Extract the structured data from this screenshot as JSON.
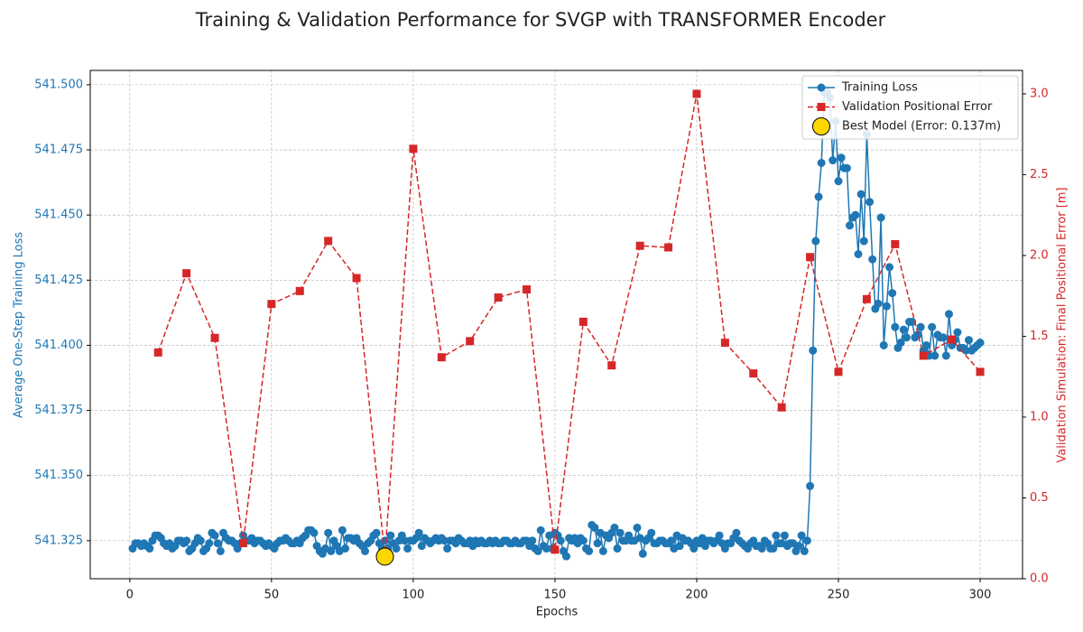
{
  "chart_data": {
    "type": "line",
    "title": "Training & Validation Performance for SVGP with TRANSFORMER Encoder",
    "x_label": "Epochs",
    "y_label": "Average One-Step Training Loss",
    "y2_label": "Validation Simulation: Final Positional Error [m]",
    "y_color": "#1f77b4",
    "y2_color": "#d62728",
    "grid": true,
    "legend": "upper right",
    "xlim": [
      -13.95,
      314.95
    ],
    "xticks": [
      0,
      50,
      100,
      150,
      200,
      250,
      300
    ],
    "ylim": [
      541.3104,
      541.5055
    ],
    "yticks": [
      541.325,
      {
        "value": 541.35,
        "label": "541.350"
      },
      541.375,
      {
        "value": 541.4,
        "label": "541.400"
      },
      541.425,
      {
        "value": 541.45,
        "label": "541.450"
      },
      541.475,
      {
        "value": 541.5,
        "label": "541.500"
      }
    ],
    "y2lim": [
      0,
      3.145
    ],
    "y2ticks": [
      {
        "value": 0,
        "label": "0.0"
      },
      0.5,
      {
        "value": 1,
        "label": "1.0"
      },
      1.5,
      {
        "value": 2,
        "label": "2.0"
      },
      2.5,
      {
        "value": 3,
        "label": "3.0"
      }
    ],
    "series": [
      {
        "name": "Training Loss",
        "color": "#1f77b4",
        "marker": "o",
        "linestyle": "solid",
        "x": [
          1,
          2,
          3,
          4,
          5,
          6,
          7,
          8,
          9,
          10,
          11,
          12,
          13,
          14,
          15,
          16,
          17,
          18,
          19,
          20,
          21,
          22,
          23,
          24,
          25,
          26,
          27,
          28,
          29,
          30,
          31,
          32,
          33,
          34,
          35,
          36,
          37,
          38,
          39,
          40,
          41,
          42,
          43,
          44,
          45,
          46,
          47,
          48,
          49,
          50,
          51,
          52,
          53,
          54,
          55,
          56,
          57,
          58,
          59,
          60,
          61,
          62,
          63,
          64,
          65,
          66,
          67,
          68,
          69,
          70,
          71,
          72,
          73,
          74,
          75,
          76,
          77,
          78,
          79,
          80,
          81,
          82,
          83,
          84,
          85,
          86,
          87,
          88,
          89,
          90,
          91,
          92,
          93,
          94,
          95,
          96,
          97,
          98,
          99,
          100,
          101,
          102,
          103,
          104,
          105,
          106,
          107,
          108,
          109,
          110,
          111,
          112,
          113,
          114,
          115,
          116,
          117,
          118,
          119,
          120,
          121,
          122,
          123,
          124,
          125,
          126,
          127,
          128,
          129,
          130,
          131,
          132,
          133,
          134,
          135,
          136,
          137,
          138,
          139,
          140,
          141,
          142,
          143,
          144,
          145,
          146,
          147,
          148,
          149,
          150,
          151,
          152,
          153,
          154,
          155,
          156,
          157,
          158,
          159,
          160,
          161,
          162,
          163,
          164,
          165,
          166,
          167,
          168,
          169,
          170,
          171,
          172,
          173,
          174,
          175,
          176,
          177,
          178,
          179,
          180,
          181,
          182,
          183,
          184,
          185,
          186,
          187,
          188,
          189,
          190,
          191,
          192,
          193,
          194,
          195,
          196,
          197,
          198,
          199,
          200,
          201,
          202,
          203,
          204,
          205,
          206,
          207,
          208,
          209,
          210,
          211,
          212,
          213,
          214,
          215,
          216,
          217,
          218,
          219,
          220,
          221,
          222,
          223,
          224,
          225,
          226,
          227,
          228,
          229,
          230,
          231,
          232,
          233,
          234,
          235,
          236,
          237,
          238,
          239,
          240,
          241,
          242,
          243,
          244,
          245,
          246,
          247,
          248,
          249,
          250,
          251,
          252,
          253,
          254,
          255,
          256,
          257,
          258,
          259,
          260,
          261,
          262,
          263,
          264,
          265,
          266,
          267,
          268,
          269,
          270,
          271,
          272,
          273,
          274,
          275,
          276,
          277,
          278,
          279,
          280,
          281,
          282,
          283,
          284,
          285,
          286,
          287,
          288,
          289,
          290,
          291,
          292,
          293,
          294,
          295,
          296,
          297,
          298,
          299,
          300
        ],
        "values": [
          541.322,
          541.324,
          541.324,
          541.323,
          541.324,
          541.323,
          541.322,
          541.325,
          541.327,
          541.327,
          541.326,
          541.324,
          541.323,
          541.324,
          541.322,
          541.323,
          541.325,
          541.325,
          541.324,
          541.325,
          541.321,
          541.322,
          541.324,
          541.326,
          541.325,
          541.321,
          541.322,
          541.324,
          541.328,
          541.327,
          541.324,
          541.321,
          541.328,
          541.326,
          541.325,
          541.325,
          541.324,
          541.322,
          541.324,
          541.327,
          541.325,
          541.325,
          541.326,
          541.324,
          541.325,
          541.325,
          541.324,
          541.323,
          541.324,
          541.323,
          541.322,
          541.324,
          541.325,
          541.325,
          541.326,
          541.325,
          541.324,
          541.324,
          541.325,
          541.324,
          541.326,
          541.327,
          541.329,
          541.329,
          541.328,
          541.323,
          541.321,
          541.32,
          541.322,
          541.328,
          541.321,
          541.325,
          541.323,
          541.321,
          541.329,
          541.322,
          541.326,
          541.326,
          541.325,
          541.326,
          541.324,
          541.323,
          541.321,
          541.324,
          541.325,
          541.327,
          541.328,
          541.324,
          541.322,
          541.325,
          541.322,
          541.327,
          541.324,
          541.322,
          541.325,
          541.327,
          541.325,
          541.322,
          541.325,
          541.325,
          541.326,
          541.328,
          541.323,
          541.326,
          541.325,
          541.324,
          541.325,
          541.326,
          541.325,
          541.326,
          541.325,
          541.322,
          541.325,
          541.325,
          541.324,
          541.326,
          541.325,
          541.324,
          541.324,
          541.325,
          541.323,
          541.325,
          541.324,
          541.325,
          541.324,
          541.324,
          541.325,
          541.324,
          541.325,
          541.324,
          541.324,
          541.325,
          541.325,
          541.324,
          541.324,
          541.325,
          541.324,
          541.324,
          541.325,
          541.325,
          541.323,
          541.325,
          541.322,
          541.321,
          541.329,
          541.323,
          541.322,
          541.327,
          541.322,
          541.328,
          541.327,
          541.325,
          541.321,
          541.319,
          541.326,
          541.325,
          541.326,
          541.324,
          541.326,
          541.325,
          541.322,
          541.321,
          541.331,
          541.33,
          541.324,
          541.328,
          541.321,
          541.327,
          541.326,
          541.328,
          541.33,
          541.322,
          541.328,
          541.325,
          541.325,
          541.327,
          541.325,
          541.325,
          541.33,
          541.326,
          541.32,
          541.325,
          541.326,
          541.328,
          541.324,
          541.324,
          541.325,
          541.325,
          541.324,
          541.324,
          541.325,
          541.322,
          541.327,
          541.323,
          541.326,
          541.325,
          541.325,
          541.324,
          541.322,
          541.325,
          541.324,
          541.326,
          541.323,
          541.325,
          541.325,
          541.324,
          541.325,
          541.327,
          541.324,
          541.322,
          541.324,
          541.324,
          541.326,
          541.328,
          541.325,
          541.324,
          541.323,
          541.322,
          541.324,
          541.325,
          541.323,
          541.323,
          541.322,
          541.325,
          541.324,
          541.322,
          541.322,
          541.327,
          541.324,
          541.324,
          541.327,
          541.323,
          541.324,
          541.324,
          541.321,
          541.323,
          541.327,
          541.321,
          541.325,
          541.346,
          541.398,
          541.44,
          541.457,
          541.47,
          541.497,
          541.497,
          541.495,
          541.471,
          541.486,
          541.463,
          541.472,
          541.468,
          541.468,
          541.446,
          541.449,
          541.45,
          541.435,
          541.458,
          541.44,
          541.481,
          541.455,
          541.433,
          541.414,
          541.416,
          541.449,
          541.4,
          541.415,
          541.43,
          541.42,
          541.407,
          541.399,
          541.401,
          541.406,
          541.403,
          541.409,
          541.409,
          541.403,
          541.404,
          541.407,
          541.398,
          541.4,
          541.396,
          541.407,
          541.396,
          541.404,
          541.403,
          541.403,
          541.396,
          541.412,
          541.4,
          541.402,
          541.405,
          541.399,
          541.399,
          541.398,
          541.402,
          541.398,
          541.399,
          541.4,
          541.401
        ]
      },
      {
        "name": "Validation Positional Error",
        "color": "#d62728",
        "marker": "s",
        "linestyle": "dashed",
        "axis": "y2",
        "x": [
          10,
          20,
          30,
          40,
          50,
          60,
          70,
          80,
          90,
          100,
          110,
          120,
          130,
          140,
          150,
          160,
          170,
          180,
          190,
          200,
          210,
          220,
          230,
          240,
          250,
          260,
          270,
          280,
          290,
          300
        ],
        "values": [
          1.4,
          1.89,
          1.49,
          0.22,
          1.7,
          1.78,
          2.09,
          1.86,
          0.137,
          2.66,
          1.37,
          1.47,
          1.74,
          1.79,
          0.18,
          1.59,
          1.32,
          2.06,
          2.05,
          3.0,
          1.46,
          1.27,
          1.06,
          1.99,
          1.28,
          1.73,
          2.07,
          1.38,
          1.48,
          1.28
        ]
      },
      {
        "name": "Best Model (Error: 0.137m)",
        "color": "#ffd700",
        "marker": "o",
        "markersize": 19,
        "axis": "y2",
        "x": [
          90
        ],
        "values": [
          0.137
        ]
      }
    ]
  }
}
